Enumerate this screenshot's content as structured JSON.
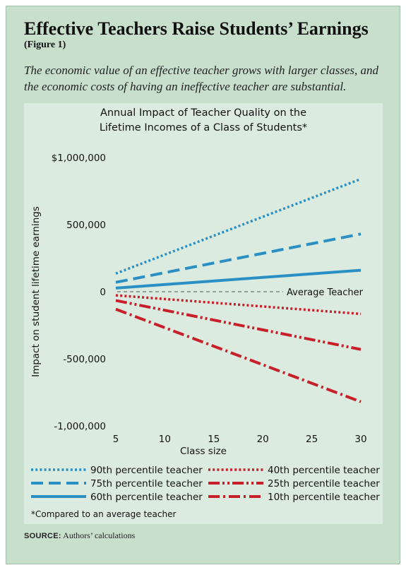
{
  "header": {
    "title": "Effective Teachers Raise Students’ Earnings",
    "figure_label": "(Figure 1)",
    "subtitle": "The economic value of an effective teacher grows with larger classes, and the economic costs of having an ineffective teacher are substantial."
  },
  "footnote": "*Compared to an average teacher",
  "source": {
    "label": "SOURCE:",
    "text": "Authors’ calculations"
  },
  "colors": {
    "background": "#c8dfcc",
    "panel": "#dcebdf",
    "blue": "#2a90c3",
    "red": "#c8202a"
  },
  "chart_data": {
    "type": "line",
    "title": "Annual Impact of Teacher Quality on the Lifetime Incomes of a Class of Students*",
    "title_lines": [
      "Annual Impact of Teacher Quality on the",
      "Lifetime Incomes of a Class of Students*"
    ],
    "xlabel": "Class size",
    "ylabel": "Impact on student lifetime earnings",
    "xlim": [
      5,
      30
    ],
    "ylim": [
      -1000000,
      1000000
    ],
    "x_ticks": [
      5,
      10,
      15,
      20,
      25,
      30
    ],
    "x_tick_labels": [
      "5",
      "10",
      "15",
      "20",
      "25",
      "30"
    ],
    "y_ticks": [
      1000000,
      500000,
      0,
      -500000,
      -1000000
    ],
    "y_tick_labels": [
      "$1,000,000",
      "500,000",
      "0",
      "-500,000",
      "-1,000,000"
    ],
    "grid": false,
    "reference_line": {
      "y": 0,
      "label": "Average Teacher",
      "style": "dashed"
    },
    "legend_position": "bottom",
    "series": [
      {
        "name": "90th percentile teacher",
        "color": "#2a90c3",
        "dash": "dotted",
        "x": [
          5,
          30
        ],
        "values": [
          135000,
          840000
        ]
      },
      {
        "name": "75th percentile teacher",
        "color": "#2a90c3",
        "dash": "dashed",
        "x": [
          5,
          30
        ],
        "values": [
          70000,
          430000
        ]
      },
      {
        "name": "60th percentile teacher",
        "color": "#2a90c3",
        "dash": "solid",
        "x": [
          5,
          30
        ],
        "values": [
          27000,
          160000
        ]
      },
      {
        "name": "40th percentile teacher",
        "color": "#c8202a",
        "dash": "dotted",
        "x": [
          5,
          30
        ],
        "values": [
          -27000,
          -165000
        ]
      },
      {
        "name": "25th percentile teacher",
        "color": "#c8202a",
        "dash": "dash-dot-dot",
        "x": [
          5,
          30
        ],
        "values": [
          -65000,
          -430000
        ]
      },
      {
        "name": "10th percentile teacher",
        "color": "#c8202a",
        "dash": "dash-dot",
        "x": [
          5,
          30
        ],
        "values": [
          -130000,
          -820000
        ]
      }
    ],
    "legend_columns": [
      [
        "90th percentile teacher",
        "75th percentile teacher",
        "60th percentile teacher"
      ],
      [
        "40th percentile teacher",
        "25th percentile teacher",
        "10th percentile teacher"
      ]
    ]
  }
}
